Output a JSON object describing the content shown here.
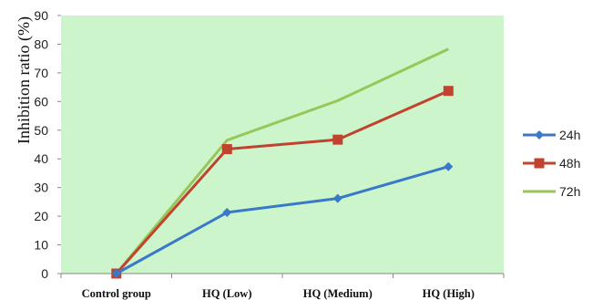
{
  "chart_data": {
    "type": "line",
    "title": "",
    "xlabel": "",
    "ylabel": "Inhibition ratio (%)",
    "categories": [
      "Control group",
      "HQ (Low)",
      "HQ (Medium)",
      "HQ (High)"
    ],
    "ylim": [
      0,
      90
    ],
    "yticks": [
      0,
      10,
      20,
      30,
      40,
      50,
      60,
      70,
      80,
      90
    ],
    "grid": false,
    "plot_background": "#ccf5cc",
    "legend_position": "right",
    "series": [
      {
        "name": "24h",
        "values": [
          0,
          21.3,
          26.2,
          37.3
        ],
        "color": "#3a78c8",
        "marker": "diamond"
      },
      {
        "name": "48h",
        "values": [
          0,
          43.4,
          46.7,
          63.7
        ],
        "color": "#c0432f",
        "marker": "square"
      },
      {
        "name": "72h",
        "values": [
          0,
          46.5,
          60.3,
          78.3
        ],
        "color": "#98c658",
        "marker": "none"
      }
    ]
  }
}
